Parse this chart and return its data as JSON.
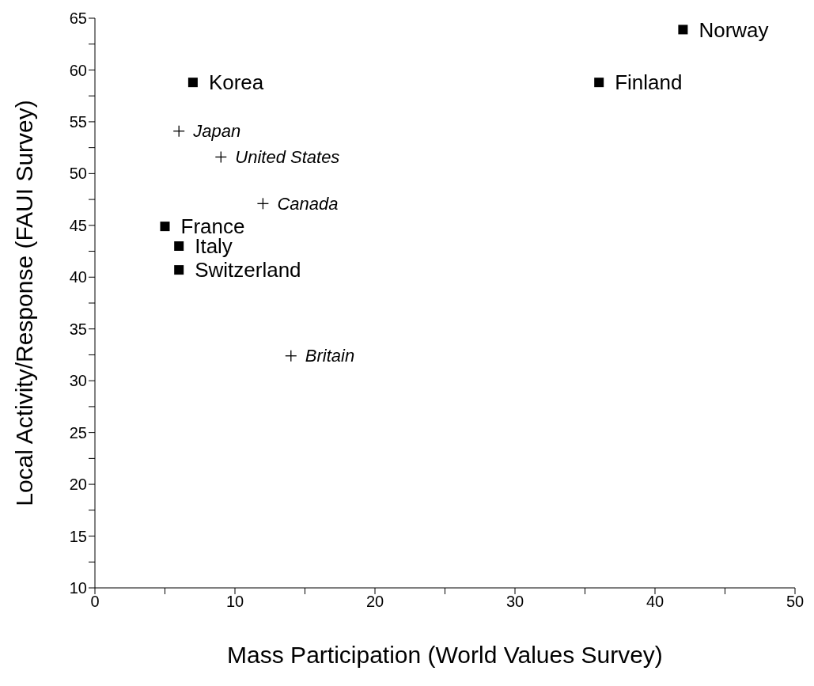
{
  "chart_data": {
    "type": "scatter",
    "xlabel": "Mass Participation (World Values Survey)",
    "ylabel": "Local Activity/Response (FAUI Survey)",
    "xlim": [
      0,
      50
    ],
    "xticks": [
      0,
      {
        "value": 5,
        "label": null
      },
      10,
      {
        "value": 15,
        "label": null
      },
      20,
      {
        "value": 25,
        "label": null
      },
      30,
      {
        "value": 35,
        "label": null
      },
      40,
      {
        "value": 45,
        "label": null
      },
      50
    ],
    "ylim": [
      10,
      65
    ],
    "yticks": [
      10,
      {
        "value": 12.5,
        "label": null
      },
      15,
      {
        "value": 17.5,
        "label": null
      },
      20,
      {
        "value": 22.5,
        "label": null
      },
      25,
      {
        "value": 27.5,
        "label": null
      },
      30,
      {
        "value": 32.5,
        "label": null
      },
      35,
      {
        "value": 37.5,
        "label": null
      },
      40,
      {
        "value": 42.5,
        "label": null
      },
      45,
      {
        "value": 47.5,
        "label": null
      },
      50,
      {
        "value": 52.5,
        "label": null
      },
      55,
      {
        "value": 57.5,
        "label": null
      },
      60,
      {
        "value": 62.5,
        "label": null
      },
      65
    ],
    "grid": false,
    "legend": false,
    "series": [
      {
        "color": "#000000",
        "marker": "square",
        "x": [
          42,
          36,
          7,
          5,
          6,
          6
        ],
        "values": [
          63.9,
          58.8,
          58.8,
          44.9,
          43.0,
          40.7
        ]
      },
      {
        "color": "#000000",
        "marker": "cross",
        "x": [
          6,
          9,
          12,
          14
        ],
        "values": [
          54.1,
          51.6,
          47.1,
          32.4
        ]
      }
    ],
    "annotations": [
      {
        "text": "Norway",
        "x": 42,
        "y": 63.9
      },
      {
        "text": "Finland",
        "x": 36,
        "y": 58.8
      },
      {
        "text": "Korea",
        "x": 7,
        "y": 58.8
      },
      {
        "text": "France",
        "x": 5,
        "y": 44.9
      },
      {
        "text": "Italy",
        "x": 6,
        "y": 43.0
      },
      {
        "text": "Switzerland",
        "x": 6,
        "y": 40.7
      },
      {
        "text": "Japan",
        "x": 6,
        "y": 54.1
      },
      {
        "text": "United States",
        "x": 9,
        "y": 51.6
      },
      {
        "text": "Canada",
        "x": 12,
        "y": 47.1
      },
      {
        "text": "Britain",
        "x": 14,
        "y": 32.4
      }
    ]
  }
}
